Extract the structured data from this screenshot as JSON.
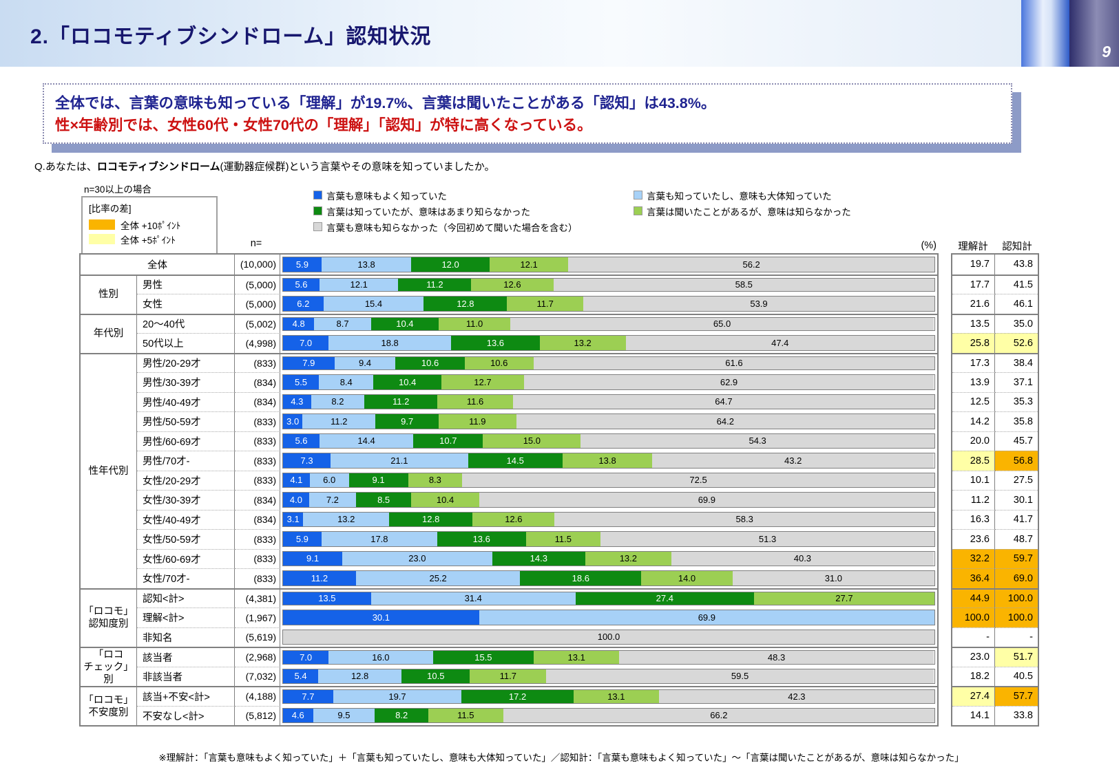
{
  "header": {
    "title": "2.「ロコモティブシンドローム」認知状況",
    "page_number": "9"
  },
  "summary": {
    "line1": "全体では、言葉の意味も知っている「理解」が19.7%、言葉は聞いたことがある「認知」は43.8%。",
    "line2": "性×年齢別では、女性60代・女性70代の「理解」「認知」が特に高くなっている。"
  },
  "question": {
    "prefix": "Q.あなたは、",
    "emphasis": "ロコモティブシンドローム",
    "suffix": "(運動器症候群)という言葉やその意味を知っていましたか。"
  },
  "diff_legend": {
    "note": "n=30以上の場合",
    "title": "[比率の差]",
    "items": [
      {
        "label": "全体 +10ﾎﾟｲﾝﾄ",
        "color": "#fab400"
      },
      {
        "label": "全体 +5ﾎﾟｲﾝﾄ",
        "color": "#ffffa6"
      }
    ]
  },
  "table_headers": {
    "n": "n=",
    "percent": "(%)",
    "understanding_total": "理解計",
    "awareness_total": "認知計"
  },
  "footnote": "※理解計：「言葉も意味もよく知っていた」＋「言葉も知っていたし、意味も大体知っていた」／認知計：「言葉も意味もよく知っていた」～「言葉は聞いたことがあるが、意味は知らなかった」",
  "colors": {
    "highlight_plus10": "#fab400",
    "highlight_plus5": "#ffffa6",
    "table_border": "#808080"
  },
  "chart_data": {
    "type": "bar",
    "stacked": true,
    "orientation": "horizontal",
    "unit": "%",
    "x_range": [
      0,
      100
    ],
    "series": [
      {
        "name": "言葉も意味もよく知っていた",
        "color": "#1562e8",
        "text_color": "#ffffff"
      },
      {
        "name": "言葉も知っていたし、意味も大体知っていた",
        "color": "#a7d1f7",
        "text_color": "#000000"
      },
      {
        "name": "言葉は知っていたが、意味はあまり知らなかった",
        "color": "#0e8a12",
        "text_color": "#ffffff"
      },
      {
        "name": "言葉は聞いたことがあるが、意味は知らなかった",
        "color": "#9ccf53",
        "text_color": "#000000"
      },
      {
        "name": "言葉も意味も知らなかった（今回初めて聞いた場合を含む）",
        "color": "#d8d8d8",
        "text_color": "#000000"
      }
    ],
    "legend_columns": [
      [
        0,
        2,
        4
      ],
      [
        1,
        3
      ]
    ],
    "groups": [
      {
        "label": null,
        "rows": [
          {
            "label": "全体",
            "n": "(10,000)",
            "values": [
              5.9,
              13.8,
              12.0,
              12.1,
              56.2
            ],
            "understanding_total": "19.7",
            "awareness_total": "43.8",
            "hl_understanding": "none",
            "hl_awareness": "none"
          }
        ]
      },
      {
        "label": "性別",
        "rows": [
          {
            "label": "男性",
            "n": "(5,000)",
            "values": [
              5.6,
              12.1,
              11.2,
              12.6,
              58.5
            ],
            "understanding_total": "17.7",
            "awareness_total": "41.5",
            "hl_understanding": "none",
            "hl_awareness": "none"
          },
          {
            "label": "女性",
            "n": "(5,000)",
            "values": [
              6.2,
              15.4,
              12.8,
              11.7,
              53.9
            ],
            "understanding_total": "21.6",
            "awareness_total": "46.1",
            "hl_understanding": "none",
            "hl_awareness": "none"
          }
        ]
      },
      {
        "label": "年代別",
        "rows": [
          {
            "label": "20～40代",
            "n": "(5,002)",
            "values": [
              4.8,
              8.7,
              10.4,
              11.0,
              65.0
            ],
            "understanding_total": "13.5",
            "awareness_total": "35.0",
            "hl_understanding": "none",
            "hl_awareness": "none"
          },
          {
            "label": "50代以上",
            "n": "(4,998)",
            "values": [
              7.0,
              18.8,
              13.6,
              13.2,
              47.4
            ],
            "understanding_total": "25.8",
            "awareness_total": "52.6",
            "hl_understanding": "plus5",
            "hl_awareness": "plus5"
          }
        ]
      },
      {
        "label": "性年代別",
        "rows": [
          {
            "label": "男性/20-29才",
            "n": "(833)",
            "values": [
              7.9,
              9.4,
              10.6,
              10.6,
              61.6
            ],
            "understanding_total": "17.3",
            "awareness_total": "38.4",
            "hl_understanding": "none",
            "hl_awareness": "none"
          },
          {
            "label": "男性/30-39才",
            "n": "(834)",
            "values": [
              5.5,
              8.4,
              10.4,
              12.7,
              62.9
            ],
            "understanding_total": "13.9",
            "awareness_total": "37.1",
            "hl_understanding": "none",
            "hl_awareness": "none"
          },
          {
            "label": "男性/40-49才",
            "n": "(834)",
            "values": [
              4.3,
              8.2,
              11.2,
              11.6,
              64.7
            ],
            "understanding_total": "12.5",
            "awareness_total": "35.3",
            "hl_understanding": "none",
            "hl_awareness": "none"
          },
          {
            "label": "男性/50-59才",
            "n": "(833)",
            "values": [
              3.0,
              11.2,
              9.7,
              11.9,
              64.2
            ],
            "understanding_total": "14.2",
            "awareness_total": "35.8",
            "hl_understanding": "none",
            "hl_awareness": "none"
          },
          {
            "label": "男性/60-69才",
            "n": "(833)",
            "values": [
              5.6,
              14.4,
              10.7,
              15.0,
              54.3
            ],
            "understanding_total": "20.0",
            "awareness_total": "45.7",
            "hl_understanding": "none",
            "hl_awareness": "none"
          },
          {
            "label": "男性/70才-",
            "n": "(833)",
            "values": [
              7.3,
              21.1,
              14.5,
              13.8,
              43.2
            ],
            "understanding_total": "28.5",
            "awareness_total": "56.8",
            "hl_understanding": "plus5",
            "hl_awareness": "plus10"
          },
          {
            "label": "女性/20-29才",
            "n": "(833)",
            "values": [
              4.1,
              6.0,
              9.1,
              8.3,
              72.5
            ],
            "understanding_total": "10.1",
            "awareness_total": "27.5",
            "hl_understanding": "none",
            "hl_awareness": "none"
          },
          {
            "label": "女性/30-39才",
            "n": "(834)",
            "values": [
              4.0,
              7.2,
              8.5,
              10.4,
              69.9
            ],
            "understanding_total": "11.2",
            "awareness_total": "30.1",
            "hl_understanding": "none",
            "hl_awareness": "none"
          },
          {
            "label": "女性/40-49才",
            "n": "(834)",
            "values": [
              3.1,
              13.2,
              12.8,
              12.6,
              58.3
            ],
            "understanding_total": "16.3",
            "awareness_total": "41.7",
            "hl_understanding": "none",
            "hl_awareness": "none"
          },
          {
            "label": "女性/50-59才",
            "n": "(833)",
            "values": [
              5.9,
              17.8,
              13.6,
              11.5,
              51.3
            ],
            "understanding_total": "23.6",
            "awareness_total": "48.7",
            "hl_understanding": "none",
            "hl_awareness": "none"
          },
          {
            "label": "女性/60-69才",
            "n": "(833)",
            "values": [
              9.1,
              23.0,
              14.3,
              13.2,
              40.3
            ],
            "understanding_total": "32.2",
            "awareness_total": "59.7",
            "hl_understanding": "plus10",
            "hl_awareness": "plus10"
          },
          {
            "label": "女性/70才-",
            "n": "(833)",
            "values": [
              11.2,
              25.2,
              18.6,
              14.0,
              31.0
            ],
            "understanding_total": "36.4",
            "awareness_total": "69.0",
            "hl_understanding": "plus10",
            "hl_awareness": "plus10"
          }
        ]
      },
      {
        "label": "「ロコモ」\n認知度別",
        "rows": [
          {
            "label": "認知<計>",
            "n": "(4,381)",
            "values": [
              13.5,
              31.4,
              27.4,
              27.7,
              null
            ],
            "understanding_total": "44.9",
            "awareness_total": "100.0",
            "hl_understanding": "plus10",
            "hl_awareness": "plus10"
          },
          {
            "label": "理解<計>",
            "n": "(1,967)",
            "values": [
              30.1,
              69.9,
              null,
              null,
              null
            ],
            "understanding_total": "100.0",
            "awareness_total": "100.0",
            "hl_understanding": "plus10",
            "hl_awareness": "plus10"
          },
          {
            "label": "非知名",
            "n": "(5,619)",
            "values": [
              null,
              null,
              null,
              null,
              100.0
            ],
            "understanding_total": "-",
            "awareness_total": "-",
            "hl_understanding": "none",
            "hl_awareness": "none"
          }
        ]
      },
      {
        "label": "「ロコ\nチェック」別",
        "rows": [
          {
            "label": "該当者",
            "n": "(2,968)",
            "values": [
              7.0,
              16.0,
              15.5,
              13.1,
              48.3
            ],
            "understanding_total": "23.0",
            "awareness_total": "51.7",
            "hl_understanding": "none",
            "hl_awareness": "plus5"
          },
          {
            "label": "非該当者",
            "n": "(7,032)",
            "values": [
              5.4,
              12.8,
              10.5,
              11.7,
              59.5
            ],
            "understanding_total": "18.2",
            "awareness_total": "40.5",
            "hl_understanding": "none",
            "hl_awareness": "none"
          }
        ]
      },
      {
        "label": "「ロコモ」\n不安度別",
        "rows": [
          {
            "label": "該当+不安<計>",
            "n": "(4,188)",
            "values": [
              7.7,
              19.7,
              17.2,
              13.1,
              42.3
            ],
            "understanding_total": "27.4",
            "awareness_total": "57.7",
            "hl_understanding": "plus5",
            "hl_awareness": "plus10"
          },
          {
            "label": "不安なし<計>",
            "n": "(5,812)",
            "values": [
              4.6,
              9.5,
              8.2,
              11.5,
              66.2
            ],
            "understanding_total": "14.1",
            "awareness_total": "33.8",
            "hl_understanding": "none",
            "hl_awareness": "none"
          }
        ]
      }
    ]
  }
}
